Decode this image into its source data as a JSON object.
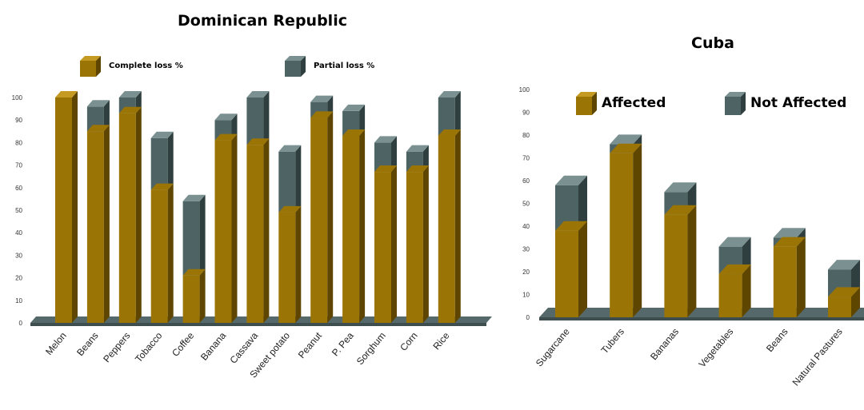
{
  "colors": {
    "series_a_front": "#9b7406",
    "series_a_side": "#5f4600",
    "series_a_top": "#c59a22",
    "series_b_front": "#4e6464",
    "series_b_side": "#2f3f3f",
    "series_b_top": "#7b9191",
    "floor": "#56696a",
    "floor_edge": "#3e4e4e"
  },
  "chart_data": [
    {
      "type": "bar",
      "stacked": true,
      "three_d": true,
      "title": "Dominican Republic",
      "categories": [
        "Melon",
        "Beans",
        "Peppers",
        "Tobacco",
        "Coffee",
        "Banana",
        "Cassava",
        "Sweet potato",
        "Peanut",
        "P. Pea",
        "Sorghum",
        "Corn",
        "Rice"
      ],
      "series": [
        {
          "name": "Complete loss %",
          "values": [
            100,
            85,
            93,
            59,
            21,
            81,
            79,
            49,
            91,
            83,
            67,
            67,
            83
          ]
        },
        {
          "name": "Partial loss %",
          "values": [
            0,
            11,
            7,
            23,
            33,
            9,
            21,
            27,
            7,
            11,
            13,
            9,
            17
          ]
        }
      ],
      "y_ticks": [
        "0",
        "10",
        "20",
        "30",
        "40",
        "50",
        "60",
        "70",
        "80",
        "90",
        "100"
      ],
      "ylim": [
        0,
        100
      ],
      "grid": false,
      "legend_position": "top"
    },
    {
      "type": "bar",
      "stacked": true,
      "three_d": true,
      "title": "Cuba",
      "categories": [
        "Sugarcane",
        "Tubers",
        "Bananas",
        "Vegetables",
        "Beans",
        "Natural Pastures"
      ],
      "series": [
        {
          "name": "Affected",
          "values": [
            38,
            72,
            45,
            19,
            31,
            9
          ]
        },
        {
          "name": "Not Affected",
          "values": [
            20,
            4,
            10,
            12,
            4,
            12
          ]
        }
      ],
      "y_ticks": [
        "0",
        "10",
        "20",
        "30",
        "40",
        "50",
        "60",
        "70",
        "80",
        "90",
        "100"
      ],
      "ylim": [
        0,
        100
      ],
      "grid": false,
      "legend_position": "top"
    }
  ]
}
